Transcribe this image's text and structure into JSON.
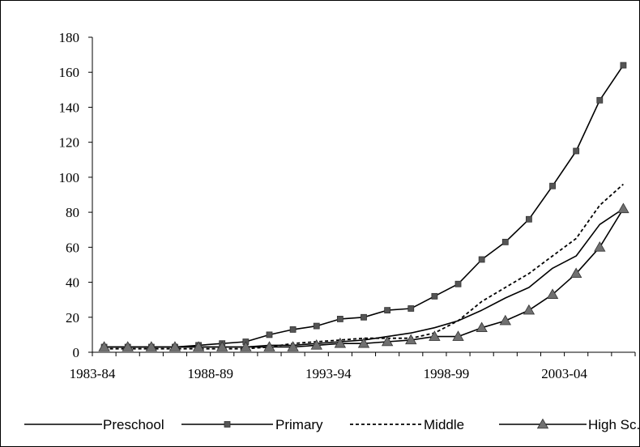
{
  "chart_data": {
    "type": "line",
    "title": "",
    "xlabel": "",
    "ylabel": "",
    "categories": [
      "1983-84",
      "1984-85",
      "1985-86",
      "1986-87",
      "1987-88",
      "1988-89",
      "1989-90",
      "1990-91",
      "1991-92",
      "1992-93",
      "1993-94",
      "1994-95",
      "1995-96",
      "1996-97",
      "1997-98",
      "1998-99",
      "1999-00",
      "2000-01",
      "2001-02",
      "2002-03",
      "2003-04",
      "2004-05",
      "2005-06"
    ],
    "x_tick_labels": [
      "1983-84",
      "1988-89",
      "1993-94",
      "1998-99",
      "2003-04"
    ],
    "x_tick_indices": [
      0,
      5,
      10,
      15,
      20
    ],
    "ylim": [
      0,
      180
    ],
    "y_ticks": [
      "0",
      "20",
      "40",
      "60",
      "80",
      "100",
      "120",
      "140",
      "160",
      "180"
    ],
    "grid": false,
    "legend_position": "bottom",
    "series": [
      {
        "name": "Preschool",
        "style": "solid",
        "marker": "none",
        "values": [
          3,
          3,
          3,
          3,
          3,
          3,
          3,
          4,
          4,
          5,
          6,
          7,
          9,
          11,
          14,
          18,
          24,
          31,
          37,
          48,
          55,
          73,
          82
        ]
      },
      {
        "name": "Primary",
        "style": "solid",
        "marker": "square",
        "values": [
          3,
          3,
          3,
          3,
          4,
          5,
          6,
          10,
          13,
          15,
          19,
          20,
          24,
          25,
          32,
          39,
          53,
          63,
          76,
          95,
          115,
          144,
          164
        ]
      },
      {
        "name": "Middle",
        "style": "dashed",
        "marker": "none",
        "values": [
          2,
          2,
          2,
          2,
          2,
          2,
          2,
          3,
          5,
          6,
          7,
          8,
          8,
          8,
          11,
          18,
          29,
          37,
          45,
          55,
          65,
          84,
          96
        ]
      },
      {
        "name": "High Sc.",
        "style": "solid",
        "marker": "triangle",
        "values": [
          3,
          3,
          3,
          3,
          3,
          3,
          3,
          3,
          3,
          4,
          5,
          5,
          6,
          7,
          9,
          9,
          14,
          18,
          24,
          33,
          45,
          60,
          82
        ]
      }
    ]
  }
}
